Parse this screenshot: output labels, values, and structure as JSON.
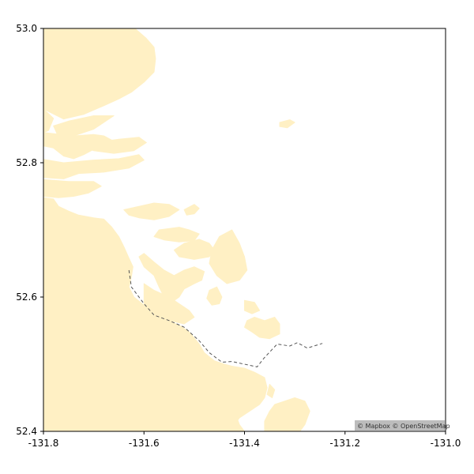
{
  "chart_data": {
    "type": "map",
    "xlim": [
      -131.8,
      -131.0
    ],
    "ylim": [
      52.4,
      53.0
    ],
    "x_ticks": [
      -131.8,
      -131.6,
      -131.4,
      -131.2,
      -131.0
    ],
    "x_tick_labels": [
      "-131.8",
      "-131.6",
      "-131.4",
      "-131.2",
      "-131.0"
    ],
    "y_ticks": [
      52.4,
      52.6,
      52.8,
      53.0
    ],
    "y_tick_labels": [
      "52.4",
      "52.6",
      "52.8",
      "53.0"
    ],
    "grid": false,
    "colors": {
      "land": "#fff0c4",
      "water": "#ffffff",
      "route": "#555555",
      "frame": "#000000"
    },
    "route": {
      "style": "dashed",
      "points": [
        [
          -131.63,
          52.64
        ],
        [
          -131.625,
          52.615
        ],
        [
          -131.6,
          52.59
        ],
        [
          -131.58,
          52.573
        ],
        [
          -131.55,
          52.565
        ],
        [
          -131.52,
          52.555
        ],
        [
          -131.49,
          52.535
        ],
        [
          -131.47,
          52.517
        ],
        [
          -131.445,
          52.503
        ],
        [
          -131.425,
          52.504
        ],
        [
          -131.4,
          52.5
        ],
        [
          -131.375,
          52.496
        ],
        [
          -131.36,
          52.51
        ],
        [
          -131.335,
          52.53
        ],
        [
          -131.31,
          52.527
        ],
        [
          -131.295,
          52.532
        ],
        [
          -131.275,
          52.524
        ],
        [
          -131.245,
          52.531
        ]
      ]
    },
    "land_polygons": [
      [
        [
          -131.8,
          53.0
        ],
        [
          -131.618,
          53.0
        ],
        [
          -131.595,
          52.985
        ],
        [
          -131.58,
          52.972
        ],
        [
          -131.577,
          52.955
        ],
        [
          -131.58,
          52.935
        ],
        [
          -131.6,
          52.92
        ],
        [
          -131.625,
          52.905
        ],
        [
          -131.65,
          52.895
        ],
        [
          -131.68,
          52.885
        ],
        [
          -131.72,
          52.872
        ],
        [
          -131.76,
          52.865
        ],
        [
          -131.8,
          52.88
        ]
      ],
      [
        [
          -131.8,
          52.88
        ],
        [
          -131.78,
          52.866
        ],
        [
          -131.79,
          52.848
        ],
        [
          -131.8,
          52.845
        ]
      ],
      [
        [
          -131.78,
          52.855
        ],
        [
          -131.75,
          52.862
        ],
        [
          -131.7,
          52.87
        ],
        [
          -131.66,
          52.87
        ],
        [
          -131.7,
          52.85
        ],
        [
          -131.74,
          52.84
        ],
        [
          -131.77,
          52.838
        ]
      ],
      [
        [
          -131.8,
          52.845
        ],
        [
          -131.74,
          52.84
        ],
        [
          -131.7,
          52.842
        ],
        [
          -131.68,
          52.84
        ],
        [
          -131.66,
          52.832
        ],
        [
          -131.7,
          52.82
        ],
        [
          -131.72,
          52.812
        ],
        [
          -131.74,
          52.806
        ],
        [
          -131.76,
          52.81
        ],
        [
          -131.78,
          52.822
        ],
        [
          -131.8,
          52.825
        ]
      ],
      [
        [
          -131.76,
          52.83
        ],
        [
          -131.7,
          52.83
        ],
        [
          -131.65,
          52.835
        ],
        [
          -131.61,
          52.838
        ],
        [
          -131.595,
          52.83
        ],
        [
          -131.62,
          52.818
        ],
        [
          -131.66,
          52.814
        ],
        [
          -131.7,
          52.818
        ]
      ],
      [
        [
          -131.8,
          52.805
        ],
        [
          -131.76,
          52.8
        ],
        [
          -131.7,
          52.804
        ],
        [
          -131.65,
          52.806
        ],
        [
          -131.61,
          52.812
        ],
        [
          -131.6,
          52.804
        ],
        [
          -131.63,
          52.792
        ],
        [
          -131.68,
          52.786
        ],
        [
          -131.73,
          52.784
        ],
        [
          -131.76,
          52.776
        ],
        [
          -131.8,
          52.778
        ]
      ],
      [
        [
          -131.8,
          52.775
        ],
        [
          -131.75,
          52.772
        ],
        [
          -131.7,
          52.772
        ],
        [
          -131.685,
          52.765
        ],
        [
          -131.71,
          52.755
        ],
        [
          -131.74,
          52.75
        ],
        [
          -131.77,
          52.748
        ],
        [
          -131.8,
          52.75
        ]
      ],
      [
        [
          -131.8,
          52.748
        ],
        [
          -131.78,
          52.746
        ],
        [
          -131.77,
          52.735
        ],
        [
          -131.75,
          52.728
        ],
        [
          -131.73,
          52.722
        ],
        [
          -131.7,
          52.718
        ],
        [
          -131.68,
          52.716
        ],
        [
          -131.665,
          52.705
        ],
        [
          -131.65,
          52.69
        ],
        [
          -131.64,
          52.675
        ],
        [
          -131.63,
          52.658
        ],
        [
          -131.622,
          52.645
        ],
        [
          -131.625,
          52.63
        ],
        [
          -131.63,
          52.615
        ],
        [
          -131.62,
          52.6
        ],
        [
          -131.6,
          52.588
        ],
        [
          -131.58,
          52.576
        ],
        [
          -131.555,
          52.566
        ],
        [
          -131.53,
          52.558
        ],
        [
          -131.51,
          52.548
        ],
        [
          -131.49,
          52.53
        ],
        [
          -131.48,
          52.517
        ],
        [
          -131.46,
          52.505
        ],
        [
          -131.44,
          52.5
        ],
        [
          -131.425,
          52.497
        ],
        [
          -131.4,
          52.494
        ],
        [
          -131.38,
          52.488
        ],
        [
          -131.36,
          52.48
        ],
        [
          -131.355,
          52.465
        ],
        [
          -131.36,
          52.45
        ],
        [
          -131.37,
          52.44
        ],
        [
          -131.39,
          52.43
        ],
        [
          -131.41,
          52.42
        ],
        [
          -131.42,
          52.41
        ],
        [
          -131.43,
          52.4
        ],
        [
          -131.8,
          52.4
        ]
      ],
      [
        [
          -131.64,
          52.73
        ],
        [
          -131.61,
          52.735
        ],
        [
          -131.58,
          52.74
        ],
        [
          -131.55,
          52.738
        ],
        [
          -131.53,
          52.73
        ],
        [
          -131.55,
          52.72
        ],
        [
          -131.58,
          52.715
        ],
        [
          -131.61,
          52.718
        ],
        [
          -131.63,
          52.722
        ]
      ],
      [
        [
          -131.57,
          52.7
        ],
        [
          -131.53,
          52.704
        ],
        [
          -131.51,
          52.7
        ],
        [
          -131.49,
          52.694
        ],
        [
          -131.5,
          52.684
        ],
        [
          -131.53,
          52.682
        ],
        [
          -131.56,
          52.685
        ],
        [
          -131.58,
          52.69
        ]
      ],
      [
        [
          -131.52,
          52.73
        ],
        [
          -131.5,
          52.738
        ],
        [
          -131.49,
          52.732
        ],
        [
          -131.5,
          52.724
        ],
        [
          -131.515,
          52.722
        ]
      ],
      [
        [
          -131.54,
          52.67
        ],
        [
          -131.52,
          52.68
        ],
        [
          -131.49,
          52.686
        ],
        [
          -131.47,
          52.68
        ],
        [
          -131.46,
          52.67
        ],
        [
          -131.47,
          52.66
        ],
        [
          -131.5,
          52.656
        ],
        [
          -131.53,
          52.66
        ]
      ],
      [
        [
          -131.45,
          52.69
        ],
        [
          -131.425,
          52.7
        ],
        [
          -131.41,
          52.68
        ],
        [
          -131.4,
          52.66
        ],
        [
          -131.395,
          52.64
        ],
        [
          -131.41,
          52.625
        ],
        [
          -131.435,
          52.62
        ],
        [
          -131.455,
          52.632
        ],
        [
          -131.47,
          52.65
        ],
        [
          -131.465,
          52.67
        ]
      ],
      [
        [
          -131.6,
          52.665
        ],
        [
          -131.58,
          52.652
        ],
        [
          -131.56,
          52.64
        ],
        [
          -131.54,
          52.632
        ],
        [
          -131.52,
          52.64
        ],
        [
          -131.5,
          52.645
        ],
        [
          -131.48,
          52.638
        ],
        [
          -131.485,
          52.625
        ],
        [
          -131.5,
          52.62
        ],
        [
          -131.52,
          52.612
        ],
        [
          -131.53,
          52.6
        ],
        [
          -131.545,
          52.592
        ],
        [
          -131.56,
          52.6
        ],
        [
          -131.57,
          52.615
        ],
        [
          -131.58,
          52.632
        ],
        [
          -131.6,
          52.645
        ],
        [
          -131.61,
          52.66
        ]
      ],
      [
        [
          -131.47,
          52.61
        ],
        [
          -131.455,
          52.615
        ],
        [
          -131.445,
          52.6
        ],
        [
          -131.45,
          52.59
        ],
        [
          -131.465,
          52.588
        ],
        [
          -131.475,
          52.598
        ]
      ],
      [
        [
          -131.4,
          52.595
        ],
        [
          -131.38,
          52.592
        ],
        [
          -131.37,
          52.58
        ],
        [
          -131.385,
          52.575
        ],
        [
          -131.4,
          52.58
        ]
      ],
      [
        [
          -131.38,
          52.57
        ],
        [
          -131.36,
          52.565
        ],
        [
          -131.34,
          52.57
        ],
        [
          -131.33,
          52.56
        ],
        [
          -131.33,
          52.545
        ],
        [
          -131.35,
          52.538
        ],
        [
          -131.37,
          52.54
        ],
        [
          -131.385,
          52.548
        ],
        [
          -131.4,
          52.555
        ],
        [
          -131.395,
          52.565
        ]
      ],
      [
        [
          -131.46,
          52.5
        ],
        [
          -131.44,
          52.496
        ],
        [
          -131.42,
          52.492
        ],
        [
          -131.41,
          52.48
        ],
        [
          -131.43,
          52.465
        ],
        [
          -131.43,
          52.45
        ],
        [
          -131.42,
          52.43
        ],
        [
          -131.41,
          52.41
        ],
        [
          -131.4,
          52.4
        ],
        [
          -131.43,
          52.4
        ],
        [
          -131.46,
          52.41
        ],
        [
          -131.48,
          52.43
        ],
        [
          -131.49,
          52.46
        ],
        [
          -131.48,
          52.48
        ]
      ],
      [
        [
          -131.4,
          52.47
        ],
        [
          -131.38,
          52.465
        ],
        [
          -131.38,
          52.45
        ],
        [
          -131.39,
          52.44
        ],
        [
          -131.41,
          52.448
        ],
        [
          -131.41,
          52.462
        ]
      ],
      [
        [
          -131.35,
          52.47
        ],
        [
          -131.34,
          52.462
        ],
        [
          -131.345,
          52.45
        ],
        [
          -131.355,
          52.455
        ]
      ],
      [
        [
          -131.34,
          52.44
        ],
        [
          -131.3,
          52.45
        ],
        [
          -131.28,
          52.445
        ],
        [
          -131.27,
          52.43
        ],
        [
          -131.28,
          52.41
        ],
        [
          -131.29,
          52.4
        ],
        [
          -131.36,
          52.4
        ],
        [
          -131.36,
          52.415
        ],
        [
          -131.35,
          52.43
        ]
      ],
      [
        [
          -131.6,
          52.62
        ],
        [
          -131.58,
          52.61
        ],
        [
          -131.55,
          52.6
        ],
        [
          -131.53,
          52.59
        ],
        [
          -131.51,
          52.58
        ],
        [
          -131.5,
          52.57
        ],
        [
          -131.52,
          52.56
        ],
        [
          -131.55,
          52.565
        ],
        [
          -131.58,
          52.575
        ],
        [
          -131.6,
          52.59
        ]
      ],
      [
        [
          -131.33,
          52.86
        ],
        [
          -131.31,
          52.864
        ],
        [
          -131.3,
          52.86
        ],
        [
          -131.315,
          52.852
        ],
        [
          -131.33,
          52.854
        ]
      ]
    ]
  },
  "attribution": {
    "text": "© Mapbox © OpenStreetMap"
  }
}
